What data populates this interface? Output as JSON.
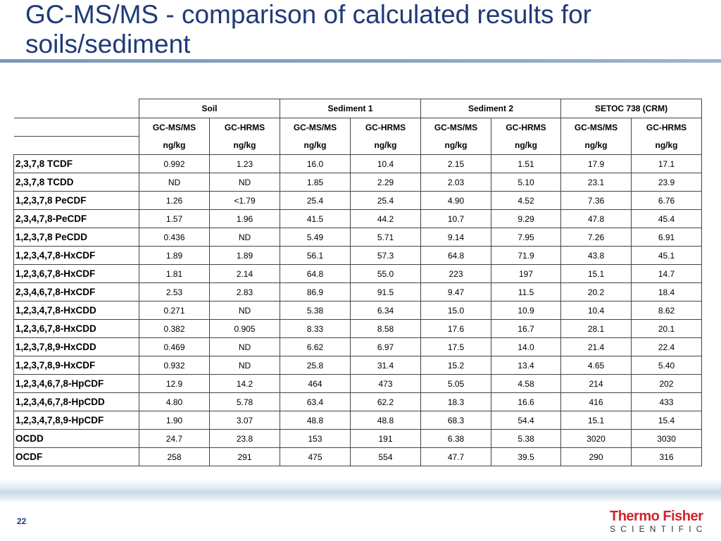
{
  "slide": {
    "title": "GC-MS/MS - comparison of calculated results for soils/sediment",
    "page_number": "22",
    "logo_line1": "Thermo Fisher",
    "logo_line2": "SCIENTIFIC"
  },
  "table": {
    "groups": [
      "Soil",
      "Sediment 1",
      "Sediment 2",
      "SETOC 738 (CRM)"
    ],
    "methods": [
      "GC-MS/MS",
      "GC-HRMS",
      "GC-MS/MS",
      "GC-HRMS",
      "GC-MS/MS",
      "GC-HRMS",
      "GC-MS/MS",
      "GC-HRMS"
    ],
    "units": [
      "ng/kg",
      "ng/kg",
      "ng/kg",
      "ng/kg",
      "ng/kg",
      "ng/kg",
      "ng/kg",
      "ng/kg"
    ],
    "rows": [
      {
        "compound": "2,3,7,8 TCDF",
        "values": [
          "0.992",
          "1.23",
          "16.0",
          "10.4",
          "2.15",
          "1.51",
          "17.9",
          "17.1"
        ]
      },
      {
        "compound": "2,3,7,8 TCDD",
        "values": [
          "ND",
          "ND",
          "1.85",
          "2.29",
          "2.03",
          "5.10",
          "23.1",
          "23.9"
        ]
      },
      {
        "compound": "1,2,3,7,8 PeCDF",
        "values": [
          "1.26",
          "<1.79",
          "25.4",
          "25.4",
          "4.90",
          "4.52",
          "7.36",
          "6.76"
        ]
      },
      {
        "compound": "2,3,4,7,8-PeCDF",
        "values": [
          "1.57",
          "1.96",
          "41.5",
          "44.2",
          "10.7",
          "9.29",
          "47.8",
          "45.4"
        ]
      },
      {
        "compound": "1,2,3,7,8 PeCDD",
        "values": [
          "0.436",
          "ND",
          "5.49",
          "5.71",
          "9.14",
          "7.95",
          "7.26",
          "6.91"
        ]
      },
      {
        "compound": "1,2,3,4,7,8-HxCDF",
        "values": [
          "1.89",
          "1.89",
          "56.1",
          "57.3",
          "64.8",
          "71.9",
          "43.8",
          "45.1"
        ]
      },
      {
        "compound": "1,2,3,6,7,8-HxCDF",
        "values": [
          "1.81",
          "2.14",
          "64.8",
          "55.0",
          "223",
          "197",
          "15.1",
          "14.7"
        ]
      },
      {
        "compound": "2,3,4,6,7,8-HxCDF",
        "values": [
          "2.53",
          "2.83",
          "86.9",
          "91.5",
          "9.47",
          "11.5",
          "20.2",
          "18.4"
        ]
      },
      {
        "compound": "1,2,3,4,7,8-HxCDD",
        "values": [
          "0.271",
          "ND",
          "5.38",
          "6.34",
          "15.0",
          "10.9",
          "10.4",
          "8.62"
        ]
      },
      {
        "compound": "1,2,3,6,7,8-HxCDD",
        "values": [
          "0.382",
          "0.905",
          "8.33",
          "8.58",
          "17.6",
          "16.7",
          "28.1",
          "20.1"
        ]
      },
      {
        "compound": "1,2,3,7,8,9-HxCDD",
        "values": [
          "0.469",
          "ND",
          "6.62",
          "6.97",
          "17.5",
          "14.0",
          "21.4",
          "22.4"
        ]
      },
      {
        "compound": "1,2,3,7,8,9-HxCDF",
        "values": [
          "0.932",
          "ND",
          "25.8",
          "31.4",
          "15.2",
          "13.4",
          "4.65",
          "5.40"
        ]
      },
      {
        "compound": "1,2,3,4,6,7,8-HpCDF",
        "values": [
          "12.9",
          "14.2",
          "464",
          "473",
          "5.05",
          "4.58",
          "214",
          "202"
        ]
      },
      {
        "compound": "1,2,3,4,6,7,8-HpCDD",
        "values": [
          "4.80",
          "5.78",
          "63.4",
          "62.2",
          "18.3",
          "16.6",
          "416",
          "433"
        ]
      },
      {
        "compound": "1,2,3,4,7,8,9-HpCDF",
        "values": [
          "1.90",
          "3.07",
          "48.8",
          "48.8",
          "68.3",
          "54.4",
          "15.1",
          "15.4"
        ]
      },
      {
        "compound": "OCDD",
        "values": [
          "24.7",
          "23.8",
          "153",
          "191",
          "6.38",
          "5.38",
          "3020",
          "3030"
        ]
      },
      {
        "compound": "OCDF",
        "values": [
          "258",
          "291",
          "475",
          "554",
          "47.7",
          "39.5",
          "290",
          "316"
        ]
      }
    ]
  }
}
